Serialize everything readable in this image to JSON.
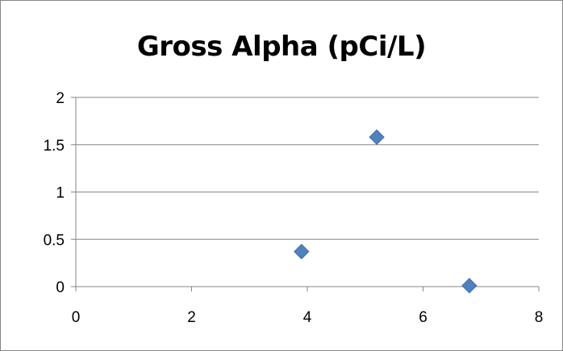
{
  "chart_data": {
    "type": "scatter",
    "title": "Gross Alpha (pCi/L)",
    "xlabel": "",
    "ylabel": "",
    "xlim": [
      0,
      8
    ],
    "ylim": [
      0,
      2
    ],
    "x_ticks": [
      "0",
      "2",
      "4",
      "6",
      "8"
    ],
    "y_ticks": [
      "0",
      "0.5",
      "1",
      "1.5",
      "2"
    ],
    "grid": "horizontal",
    "marker": "diamond",
    "marker_color": "#4F81BD",
    "points": [
      {
        "x": 3.9,
        "y": 0.37
      },
      {
        "x": 5.2,
        "y": 1.58
      },
      {
        "x": 6.8,
        "y": 0.01
      }
    ]
  }
}
